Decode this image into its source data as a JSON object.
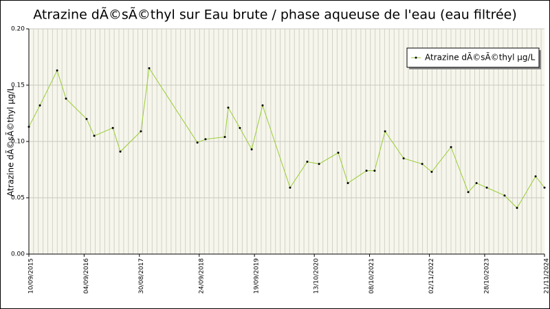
{
  "chart_data": {
    "type": "line",
    "title": "Atrazine dÃ©sÃ©thyl sur Eau brute / phase aqueuse de l'eau (eau filtrée)",
    "y_label": "Atrazine dÃ©sÃ©thyl µg/L",
    "x": [
      "2015-09-10",
      "2015-11-21",
      "2016-03-12",
      "2016-05-09",
      "2016-09-20",
      "2016-11-09",
      "2017-03-10",
      "2017-04-28",
      "2017-09-09",
      "2017-11-02",
      "2018-09-12",
      "2018-11-04",
      "2019-03-10",
      "2019-04-01",
      "2019-06-16",
      "2019-09-01",
      "2019-11-11",
      "2020-05-08",
      "2020-08-28",
      "2020-11-13",
      "2021-03-18",
      "2021-05-20",
      "2021-09-18",
      "2021-11-10",
      "2022-01-17",
      "2022-05-18",
      "2022-09-16",
      "2022-11-17",
      "2023-03-23",
      "2023-07-13",
      "2023-09-05",
      "2023-11-11",
      "2024-03-06",
      "2024-05-26",
      "2024-09-24",
      "2024-11-21"
    ],
    "series": [
      {
        "name": "Atrazine dÃ©sÃ©thyl µg/L",
        "color": "#99cc33",
        "marker_color": "#000000",
        "values": [
          0.113,
          0.132,
          0.163,
          0.138,
          0.12,
          0.105,
          0.112,
          0.091,
          0.109,
          0.165,
          0.099,
          0.102,
          0.104,
          0.13,
          0.112,
          0.093,
          0.132,
          0.059,
          0.082,
          0.08,
          0.09,
          0.063,
          0.074,
          0.074,
          0.109,
          0.085,
          0.08,
          0.073,
          0.095,
          0.055,
          0.063,
          0.059,
          0.052,
          0.041,
          0.069,
          0.059
        ]
      }
    ],
    "xlim": [
      "2015-09-10",
      "2024-11-21"
    ],
    "xticks": [
      {
        "value": "2015-09-10",
        "label": "10/09/2015"
      },
      {
        "value": "2016-09-04",
        "label": "04/09/2016"
      },
      {
        "value": "2017-08-30",
        "label": "30/08/2017"
      },
      {
        "value": "2018-09-24",
        "label": "24/09/2018"
      },
      {
        "value": "2019-09-19",
        "label": "19/09/2019"
      },
      {
        "value": "2020-10-13",
        "label": "13/10/2020"
      },
      {
        "value": "2021-10-08",
        "label": "08/10/2021"
      },
      {
        "value": "2022-11-02",
        "label": "02/11/2022"
      },
      {
        "value": "2023-10-28",
        "label": "28/10/2023"
      },
      {
        "value": "2024-11-21",
        "label": "21/11/2024"
      }
    ],
    "ylim": [
      0,
      0.2
    ],
    "yticks": [
      {
        "value": 0,
        "label": "0.00"
      },
      {
        "value": 0.05,
        "label": "0.05"
      },
      {
        "value": 0.1,
        "label": "0.10"
      },
      {
        "value": 0.15,
        "label": "0.15"
      },
      {
        "value": 0.2,
        "label": "0.20"
      }
    ],
    "grid": true,
    "legend": "top-right"
  }
}
